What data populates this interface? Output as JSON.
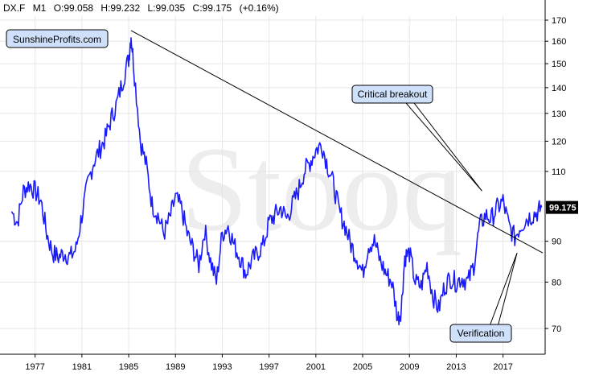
{
  "header": {
    "symbol": "DX.F",
    "interval": "M1",
    "open": "O:99.058",
    "high": "H:99.232",
    "low": "L:99.035",
    "close": "C:99.175",
    "change": "(+0.16%)"
  },
  "chart_data": {
    "type": "line",
    "series": [
      {
        "name": "DX.F",
        "color": "#1a1aff",
        "x": [
          1975.0,
          1975.5,
          1976.0,
          1976.5,
          1977.0,
          1977.5,
          1978.0,
          1978.5,
          1979.0,
          1979.5,
          1980.0,
          1980.5,
          1981.0,
          1981.5,
          1982.0,
          1982.5,
          1983.0,
          1983.5,
          1984.0,
          1984.5,
          1985.0,
          1985.2,
          1985.5,
          1986.0,
          1986.5,
          1987.0,
          1987.5,
          1988.0,
          1988.5,
          1989.0,
          1989.5,
          1990.0,
          1990.5,
          1991.0,
          1991.5,
          1992.0,
          1992.5,
          1993.0,
          1993.5,
          1994.0,
          1994.5,
          1995.0,
          1995.5,
          1996.0,
          1996.5,
          1997.0,
          1997.5,
          1998.0,
          1998.5,
          1999.0,
          1999.5,
          2000.0,
          2000.5,
          2001.0,
          2001.5,
          2002.0,
          2002.5,
          2003.0,
          2003.5,
          2004.0,
          2004.5,
          2005.0,
          2005.5,
          2006.0,
          2006.5,
          2007.0,
          2007.5,
          2008.0,
          2008.3,
          2008.6,
          2009.0,
          2009.5,
          2010.0,
          2010.5,
          2011.0,
          2011.5,
          2012.0,
          2012.5,
          2013.0,
          2013.5,
          2014.0,
          2014.5,
          2015.0,
          2015.5,
          2016.0,
          2016.5,
          2017.0,
          2017.5,
          2018.0,
          2018.5,
          2019.0,
          2019.5,
          2020.0,
          2020.3
        ],
        "values": [
          98,
          95,
          104,
          106,
          104,
          101,
          92,
          87,
          86,
          87,
          86,
          88,
          97,
          106,
          113,
          117,
          121,
          128,
          134,
          143,
          152,
          163,
          145,
          120,
          112,
          100,
          97,
          92,
          96,
          102,
          99,
          92,
          88,
          84,
          93,
          85,
          80,
          92,
          94,
          89,
          86,
          82,
          85,
          87,
          89,
          95,
          97,
          99,
          96,
          100,
          104,
          110,
          113,
          117,
          119,
          112,
          106,
          98,
          94,
          89,
          86,
          82,
          89,
          90,
          85,
          82,
          80,
          72,
          74,
          86,
          87,
          80,
          79,
          84,
          77,
          74,
          79,
          81,
          80,
          81,
          80,
          84,
          94,
          97,
          96,
          99,
          101,
          94,
          91,
          94,
          96,
          97,
          98,
          99.2
        ]
      }
    ],
    "xlim": [
      1974.0,
      2020.6
    ],
    "ylim": [
      65,
      172
    ],
    "x_ticks": [
      1977,
      1981,
      1985,
      1989,
      1993,
      1997,
      2001,
      2005,
      2009,
      2013,
      2017
    ],
    "x_tick_labels": [
      "1977",
      "1981",
      "1985",
      "1989",
      "1993",
      "1997",
      "2001",
      "2005",
      "2009",
      "2013",
      "2017"
    ],
    "y_ticks": [
      70,
      80,
      90,
      110,
      120,
      130,
      140,
      150,
      160,
      170
    ],
    "y_tick_labels": [
      "70",
      "80",
      "90",
      "110",
      "120",
      "130",
      "140",
      "150",
      "160",
      "170"
    ],
    "y_scale": "log",
    "grid": true,
    "current_price_label": "99.175",
    "current_price_value": 99.175,
    "trendline": {
      "from": {
        "x": 1985.2,
        "y": 165
      },
      "to": {
        "x": 2020.4,
        "y": 87
      }
    },
    "annotations": [
      {
        "text": "Critical breakout",
        "target": {
          "x": 2015.2,
          "y": 104
        }
      },
      {
        "text": "Verification",
        "target": {
          "x": 2018.2,
          "y": 87
        }
      }
    ],
    "source_label": "SunshineProfits.com",
    "watermark": "Stooq"
  }
}
